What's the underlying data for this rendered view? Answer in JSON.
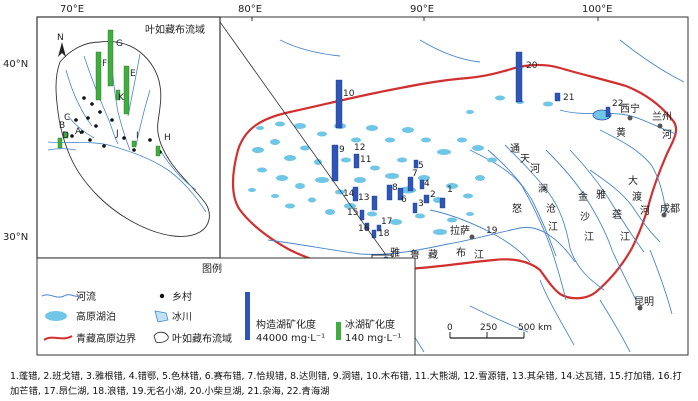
{
  "axes": {
    "top_lon": [
      "70°E",
      "80°E",
      "90°E",
      "100°E"
    ],
    "left_lat": [
      "40°N",
      "30°N"
    ]
  },
  "inset": {
    "title": "叶如藏布流域",
    "north": "N",
    "point_labels": [
      "A",
      "B",
      "C",
      "D",
      "E",
      "F",
      "G",
      "H",
      "I",
      "J",
      "K"
    ]
  },
  "lake_numbers": [
    "1",
    "2",
    "3",
    "4",
    "5",
    "6",
    "7",
    "8",
    "9",
    "10",
    "11",
    "12",
    "13",
    "14",
    "15",
    "16",
    "17",
    "18",
    "19",
    "20",
    "21",
    "22"
  ],
  "places": {
    "lhasa": "拉萨",
    "xining": "西宁",
    "lanzhou": "兰州",
    "chengdu": "成都",
    "kunming": "昆明"
  },
  "rivers": {
    "tongtian": [
      "通",
      "天",
      "河"
    ],
    "lancang": [
      "澜",
      "沧",
      "江"
    ],
    "nu": "怒",
    "jinsha": [
      "金",
      "沙",
      "江"
    ],
    "yalong": [
      "雅",
      "砻",
      "江"
    ],
    "dadu": [
      "大",
      "渡",
      "河"
    ],
    "huanghe": [
      "黄",
      "河"
    ],
    "yarlung": [
      "雅",
      "鲁",
      "藏",
      "布",
      "江"
    ]
  },
  "legend": {
    "title": "图例",
    "river": "河流",
    "village": "乡村",
    "lake": "高原湖泊",
    "glacier": "冰川",
    "boundary": "青藏高原边界",
    "basin": "叶如藏布流域",
    "tectonic": "构造湖矿化度",
    "tectonic_value": "44000 mg·L⁻¹",
    "glacial": "冰湖矿化度",
    "glacial_value": "140 mg·L⁻¹"
  },
  "scale": {
    "labels": [
      "0",
      "250",
      "500 km"
    ]
  },
  "colors": {
    "tectonic_bar": "#2f55b8",
    "glacial_bar": "#3fae3f",
    "lake": "#6fc6e6",
    "river": "#4a86cc",
    "boundary": "#d0302f"
  },
  "caption": "1.蓬错, 2.班戈错, 3.雅根错, 4.错鄂, 5.色林错, 6.赛布错, 7.恰规错, 8.达则错, 9.洞错, 10.木布错, 11.大熊湖, 12.雪源错, 13.其朵错, 14.达瓦错, 15.打加错, 16.打加芒错, 17.昂仁湖, 18.浪错, 19.无名小湖, 20.小柴旦湖, 21.杂海, 22.青海湖"
}
